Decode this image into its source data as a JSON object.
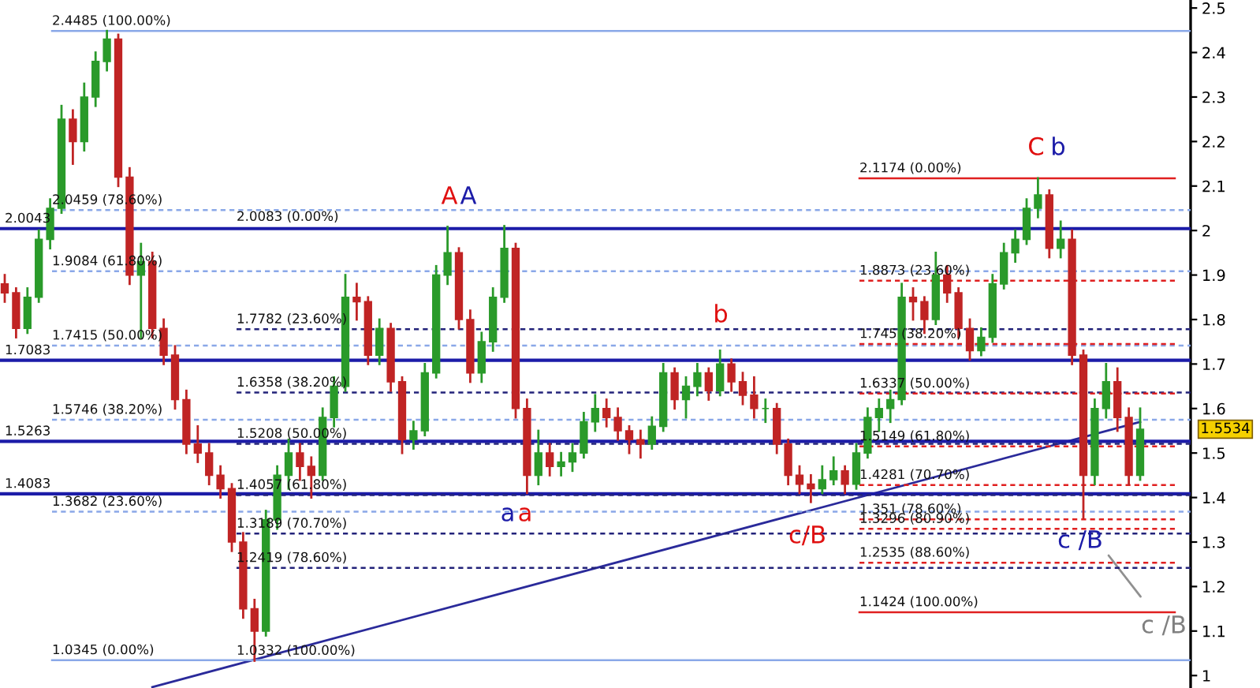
{
  "chart_data": {
    "type": "candlestick",
    "categories": [
      null,
      null,
      null,
      null,
      null,
      null,
      null,
      null,
      null,
      null,
      null,
      null,
      null,
      null,
      null,
      null,
      null,
      null,
      null,
      null,
      null,
      null,
      null,
      null,
      null,
      null,
      null,
      null,
      null,
      null,
      null,
      null,
      null,
      null,
      null,
      null,
      null,
      null,
      null,
      null,
      null,
      null,
      null,
      null,
      null,
      null,
      null,
      null,
      null,
      null,
      null,
      null,
      null,
      null,
      null,
      null,
      null,
      null,
      null,
      null,
      null,
      null,
      null,
      null,
      null,
      null,
      null,
      null,
      null,
      null,
      null,
      null,
      null,
      null,
      null,
      null,
      null,
      null,
      null,
      null,
      null,
      null,
      null,
      null,
      null,
      null,
      null,
      null,
      null,
      null,
      null,
      null,
      null,
      null,
      null,
      null,
      null,
      null,
      null,
      null,
      null
    ],
    "ohlc": [
      [
        1.88,
        1.9,
        1.84,
        1.86
      ],
      [
        1.86,
        1.87,
        1.76,
        1.78
      ],
      [
        1.78,
        1.87,
        1.77,
        1.85
      ],
      [
        1.85,
        2.0,
        1.84,
        1.98
      ],
      [
        1.98,
        2.07,
        1.96,
        2.05
      ],
      [
        2.05,
        2.28,
        2.04,
        2.25
      ],
      [
        2.25,
        2.27,
        2.15,
        2.2
      ],
      [
        2.2,
        2.33,
        2.18,
        2.3
      ],
      [
        2.3,
        2.4,
        2.28,
        2.38
      ],
      [
        2.38,
        2.4485,
        2.36,
        2.43
      ],
      [
        2.43,
        2.44,
        2.1,
        2.12
      ],
      [
        2.12,
        2.14,
        1.88,
        1.9
      ],
      [
        1.9,
        1.97,
        1.76,
        1.93
      ],
      [
        1.93,
        1.95,
        1.76,
        1.78
      ],
      [
        1.78,
        1.8,
        1.7,
        1.72
      ],
      [
        1.72,
        1.74,
        1.6,
        1.62
      ],
      [
        1.62,
        1.64,
        1.5,
        1.52
      ],
      [
        1.52,
        1.56,
        1.48,
        1.5
      ],
      [
        1.5,
        1.52,
        1.43,
        1.45
      ],
      [
        1.45,
        1.47,
        1.4,
        1.42
      ],
      [
        1.42,
        1.43,
        1.28,
        1.3
      ],
      [
        1.3,
        1.32,
        1.13,
        1.15
      ],
      [
        1.15,
        1.17,
        1.0332,
        1.1
      ],
      [
        1.1,
        1.37,
        1.09,
        1.35
      ],
      [
        1.35,
        1.47,
        1.33,
        1.45
      ],
      [
        1.45,
        1.53,
        1.42,
        1.5
      ],
      [
        1.5,
        1.52,
        1.44,
        1.47
      ],
      [
        1.47,
        1.49,
        1.4,
        1.45
      ],
      [
        1.45,
        1.6,
        1.44,
        1.58
      ],
      [
        1.58,
        1.67,
        1.56,
        1.65
      ],
      [
        1.65,
        1.9,
        1.64,
        1.85
      ],
      [
        1.85,
        1.88,
        1.8,
        1.84
      ],
      [
        1.84,
        1.85,
        1.7,
        1.72
      ],
      [
        1.72,
        1.8,
        1.7,
        1.78
      ],
      [
        1.78,
        1.79,
        1.64,
        1.66
      ],
      [
        1.66,
        1.67,
        1.5,
        1.53
      ],
      [
        1.53,
        1.57,
        1.51,
        1.55
      ],
      [
        1.55,
        1.7,
        1.54,
        1.68
      ],
      [
        1.68,
        1.92,
        1.67,
        1.9
      ],
      [
        1.9,
        2.0083,
        1.88,
        1.95
      ],
      [
        1.95,
        1.96,
        1.78,
        1.8
      ],
      [
        1.8,
        1.82,
        1.66,
        1.68
      ],
      [
        1.68,
        1.77,
        1.66,
        1.75
      ],
      [
        1.75,
        1.87,
        1.73,
        1.85
      ],
      [
        1.85,
        2.01,
        1.84,
        1.96
      ],
      [
        1.96,
        1.97,
        1.58,
        1.6
      ],
      [
        1.6,
        1.62,
        1.41,
        1.45
      ],
      [
        1.45,
        1.55,
        1.43,
        1.5
      ],
      [
        1.5,
        1.52,
        1.45,
        1.47
      ],
      [
        1.47,
        1.5,
        1.45,
        1.48
      ],
      [
        1.48,
        1.52,
        1.46,
        1.5
      ],
      [
        1.5,
        1.59,
        1.49,
        1.57
      ],
      [
        1.57,
        1.63,
        1.55,
        1.6
      ],
      [
        1.6,
        1.62,
        1.56,
        1.58
      ],
      [
        1.58,
        1.6,
        1.53,
        1.55
      ],
      [
        1.55,
        1.56,
        1.5,
        1.53
      ],
      [
        1.53,
        1.55,
        1.49,
        1.52
      ],
      [
        1.52,
        1.58,
        1.51,
        1.56
      ],
      [
        1.56,
        1.7,
        1.55,
        1.68
      ],
      [
        1.68,
        1.69,
        1.6,
        1.62
      ],
      [
        1.62,
        1.67,
        1.58,
        1.65
      ],
      [
        1.65,
        1.7,
        1.63,
        1.68
      ],
      [
        1.68,
        1.69,
        1.62,
        1.64
      ],
      [
        1.64,
        1.73,
        1.63,
        1.7
      ],
      [
        1.7,
        1.71,
        1.64,
        1.66
      ],
      [
        1.66,
        1.68,
        1.61,
        1.63
      ],
      [
        1.63,
        1.67,
        1.58,
        1.6
      ],
      [
        1.6,
        1.62,
        1.57,
        1.6
      ],
      [
        1.6,
        1.61,
        1.5,
        1.52
      ],
      [
        1.52,
        1.53,
        1.43,
        1.45
      ],
      [
        1.45,
        1.47,
        1.41,
        1.43
      ],
      [
        1.43,
        1.45,
        1.39,
        1.42
      ],
      [
        1.42,
        1.47,
        1.41,
        1.44
      ],
      [
        1.44,
        1.49,
        1.43,
        1.46
      ],
      [
        1.46,
        1.47,
        1.41,
        1.43
      ],
      [
        1.43,
        1.52,
        1.42,
        1.5
      ],
      [
        1.5,
        1.6,
        1.49,
        1.58
      ],
      [
        1.58,
        1.62,
        1.55,
        1.6
      ],
      [
        1.6,
        1.64,
        1.57,
        1.62
      ],
      [
        1.62,
        1.88,
        1.61,
        1.85
      ],
      [
        1.85,
        1.87,
        1.8,
        1.84
      ],
      [
        1.84,
        1.85,
        1.77,
        1.8
      ],
      [
        1.8,
        1.95,
        1.79,
        1.9
      ],
      [
        1.9,
        1.92,
        1.84,
        1.86
      ],
      [
        1.86,
        1.87,
        1.76,
        1.78
      ],
      [
        1.78,
        1.8,
        1.71,
        1.73
      ],
      [
        1.73,
        1.78,
        1.72,
        1.76
      ],
      [
        1.76,
        1.9,
        1.75,
        1.88
      ],
      [
        1.88,
        1.97,
        1.87,
        1.95
      ],
      [
        1.95,
        2.0,
        1.93,
        1.98
      ],
      [
        1.98,
        2.07,
        1.97,
        2.05
      ],
      [
        2.05,
        2.1174,
        2.03,
        2.08
      ],
      [
        2.08,
        2.09,
        1.94,
        1.96
      ],
      [
        1.96,
        2.02,
        1.94,
        1.98
      ],
      [
        1.98,
        2.0,
        1.7,
        1.72
      ],
      [
        1.72,
        1.73,
        1.355,
        1.45
      ],
      [
        1.45,
        1.62,
        1.43,
        1.6
      ],
      [
        1.6,
        1.7,
        1.58,
        1.66
      ],
      [
        1.66,
        1.69,
        1.55,
        1.58
      ],
      [
        1.58,
        1.6,
        1.43,
        1.45
      ],
      [
        1.45,
        1.6,
        1.44,
        1.5534
      ]
    ],
    "series": [
      {
        "type": "line",
        "values": [
          null,
          null,
          null,
          null,
          null,
          null,
          null,
          null,
          null,
          null,
          null,
          null,
          null,
          0.974,
          null,
          null,
          null,
          null,
          null,
          null,
          null,
          null,
          null,
          null,
          null,
          null,
          null,
          null,
          null,
          null,
          null,
          null,
          null,
          null,
          null,
          null,
          null,
          null,
          null,
          null,
          null,
          null,
          null,
          null,
          null,
          null,
          null,
          null,
          null,
          null,
          null,
          null,
          null,
          null,
          null,
          null,
          null,
          null,
          null,
          null,
          null,
          null,
          null,
          null,
          null,
          null,
          null,
          null,
          null,
          null,
          null,
          null,
          null,
          null,
          null,
          null,
          null,
          null,
          null,
          null,
          null,
          null,
          null,
          null,
          null,
          null,
          null,
          null,
          null,
          null,
          null,
          null,
          null,
          null,
          null,
          null,
          null,
          null,
          null,
          null,
          1.57
        ],
        "color": "#2a2a9a"
      }
    ],
    "ylim": [
      0.972,
      2.518
    ],
    "yticks": [
      1,
      1.1,
      1.2,
      1.3,
      1.4,
      1.5,
      1.6,
      1.7,
      1.8,
      1.9,
      2,
      2.1,
      2.2,
      2.3,
      2.4,
      2.5
    ],
    "tick_labels": "y",
    "grid": false,
    "legend": false,
    "ref_lines": [
      {
        "axis": "y",
        "value": 2.0043,
        "label": "2.0043",
        "color": "#1c1ca8",
        "line_style": "solid"
      },
      {
        "axis": "y",
        "value": 1.7083,
        "label": "1.7083",
        "color": "#1c1ca8",
        "line_style": "solid"
      },
      {
        "axis": "y",
        "value": 1.5263,
        "label": "1.5263",
        "color": "#1c1ca8",
        "line_style": "solid"
      },
      {
        "axis": "y",
        "value": 1.4083,
        "label": "1.4083",
        "color": "#1c1ca8",
        "line_style": "solid"
      },
      {
        "axis": "y",
        "value": 2.4485,
        "label": "2.4485 (100.00%)",
        "color": "#8aa8e8",
        "line_style": "solid"
      },
      {
        "axis": "y",
        "value": 2.0459,
        "label": "2.0459 (78.60%)",
        "color": "#8aa8e8",
        "line_style": "dashed"
      },
      {
        "axis": "y",
        "value": 1.9084,
        "label": "1.9084 (61.80%)",
        "color": "#8aa8e8",
        "line_style": "dashed"
      },
      {
        "axis": "y",
        "value": 1.7415,
        "label": "1.7415 (50.00%)",
        "color": "#8aa8e8",
        "line_style": "dashed"
      },
      {
        "axis": "y",
        "value": 1.5746,
        "label": "1.5746 (38.20%)",
        "color": "#8aa8e8",
        "line_style": "dashed"
      },
      {
        "axis": "y",
        "value": 1.3682,
        "label": "1.3682 (23.60%)",
        "color": "#8aa8e8",
        "line_style": "dashed"
      },
      {
        "axis": "y",
        "value": 1.0345,
        "label": "1.0345 (0.00%)",
        "color": "#8aa8e8",
        "line_style": "solid"
      },
      {
        "axis": "y",
        "value": 1.7782,
        "label": "1.7782 (23.60%)",
        "color": "#23237a",
        "line_style": "dashed"
      },
      {
        "axis": "y",
        "value": 1.6358,
        "label": "1.6358 (38.20%)",
        "color": "#23237a",
        "line_style": "dashed"
      },
      {
        "axis": "y",
        "value": 1.5208,
        "label": "1.5208 (50.00%)",
        "color": "#23237a",
        "line_style": "dashed"
      },
      {
        "axis": "y",
        "value": 1.4057,
        "label": "1.4057 (61.80%)",
        "color": "#23237a",
        "line_style": "dashed"
      },
      {
        "axis": "y",
        "value": 1.3189,
        "label": "1.3189 (70.70%)",
        "color": "#23237a",
        "line_style": "dashed"
      },
      {
        "axis": "y",
        "value": 1.2419,
        "label": "1.2419 (78.60%)",
        "color": "#23237a",
        "line_style": "dashed"
      },
      {
        "axis": "y",
        "value": 2.1174,
        "label": "2.1174 (0.00%)",
        "color": "#e02020",
        "line_style": "solid"
      },
      {
        "axis": "y",
        "value": 1.8873,
        "label": "1.8873 (23.60%)",
        "color": "#e02020",
        "line_style": "dashed"
      },
      {
        "axis": "y",
        "value": 1.745,
        "label": "1.745 (38.20%)",
        "color": "#e02020",
        "line_style": "dashed"
      },
      {
        "axis": "y",
        "value": 1.6337,
        "label": "1.6337 (50.00%)",
        "color": "#e02020",
        "line_style": "dashed"
      },
      {
        "axis": "y",
        "value": 1.5149,
        "label": "1.5149 (61.80%)",
        "color": "#e02020",
        "line_style": "dashed"
      },
      {
        "axis": "y",
        "value": 1.4281,
        "label": "1.4281 (70.70%)",
        "color": "#e02020",
        "line_style": "dashed"
      },
      {
        "axis": "y",
        "value": 1.351,
        "label": "1.351 (78.60%)",
        "color": "#e02020",
        "line_style": "dashed"
      },
      {
        "axis": "y",
        "value": 1.3296,
        "label": "1.3296 (80.90%)",
        "color": "#e02020",
        "line_style": "dashed"
      },
      {
        "axis": "y",
        "value": 1.2535,
        "label": "1.2535 (88.60%)",
        "color": "#e02020",
        "line_style": "dashed"
      },
      {
        "axis": "y",
        "value": 1.1424,
        "label": "1.1424 (100.00%)",
        "color": "#e02020",
        "line_style": "solid"
      }
    ],
    "annotations": [
      {
        "text": "2.0083 (0.00%)",
        "y": 2.0083
      },
      {
        "text": "1.0332 (100.00%)",
        "y": 1.0332
      },
      "A",
      "A",
      "a",
      "a",
      "b",
      "c/B",
      "C",
      "b",
      "c /B",
      "c /B",
      "1.5534"
    ]
  }
}
